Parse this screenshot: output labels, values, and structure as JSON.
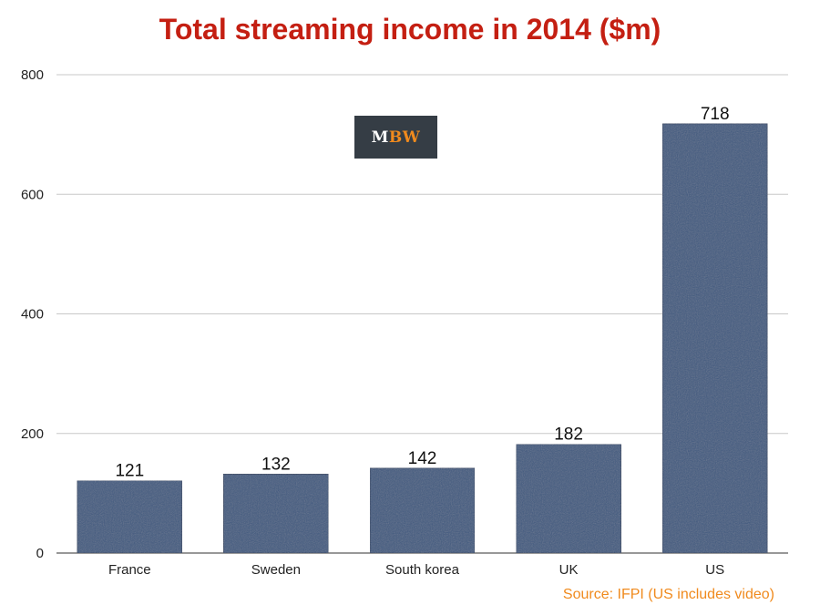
{
  "chart_data": {
    "type": "bar",
    "title": "Total streaming income in 2014 ($m)",
    "categories": [
      "France",
      "Sweden",
      "South korea",
      "UK",
      "US"
    ],
    "values": [
      121,
      132,
      142,
      182,
      718
    ],
    "xlabel": "",
    "ylabel": "",
    "ylim": [
      0,
      800
    ],
    "yticks": [
      0,
      200,
      400,
      600,
      800
    ],
    "grid": true,
    "data_labels": true
  },
  "source": "Source: IFPI (US includes video)",
  "logo": {
    "part1": "M",
    "part2": "BW"
  },
  "colors": {
    "title": "#c41f12",
    "bar": "#3f5a80",
    "bar_border": "#2d4262",
    "source": "#f08a1d",
    "logo_bg": "#353d45",
    "logo_text": "#ffffff",
    "logo_accent": "#f08a1d",
    "grid": "#c8c8c8"
  }
}
